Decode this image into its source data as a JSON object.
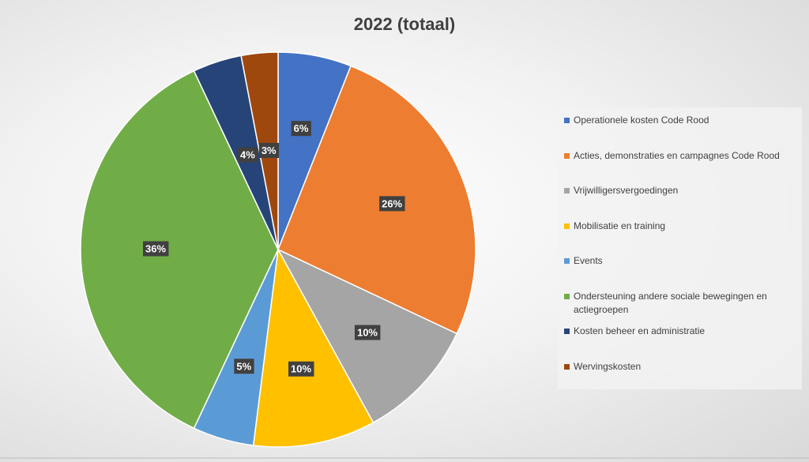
{
  "chart_data": {
    "type": "pie",
    "title": "2022 (totaal)",
    "categories": [
      "Operationele kosten Code Rood",
      "Acties, demonstraties en campagnes Code Rood",
      "Vrijwilligersvergoedingen",
      "Mobilisatie en training",
      "Events",
      "Ondersteuning andere sociale bewegingen en actiegroepen",
      "Kosten beheer en administratie",
      "Wervingskosten"
    ],
    "values": [
      6,
      26,
      10,
      10,
      5,
      36,
      4,
      3
    ],
    "value_labels": [
      "6%",
      "26%",
      "10%",
      "10%",
      "5%",
      "36%",
      "4%",
      "3%"
    ],
    "colors": [
      "#4472c4",
      "#ed7d31",
      "#a5a5a5",
      "#ffc000",
      "#5b9bd5",
      "#70ad47",
      "#264478",
      "#9e480e"
    ],
    "legend": "right"
  }
}
